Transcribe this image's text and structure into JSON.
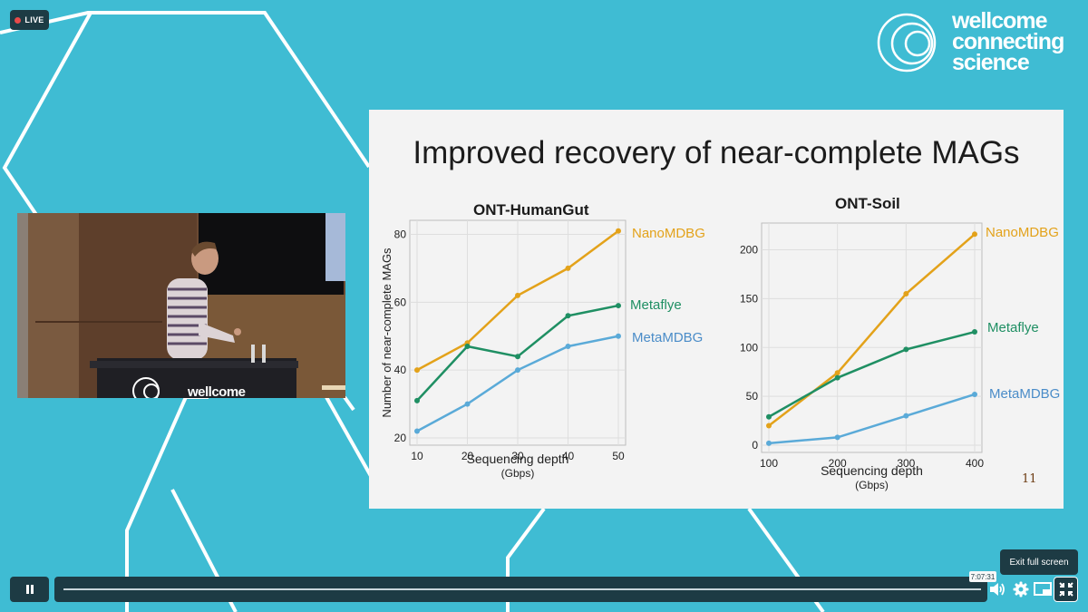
{
  "live_badge": {
    "label": "LIVE"
  },
  "logo": {
    "line1": "wellcome",
    "line2": "connecting",
    "line3": "science"
  },
  "speaker": {
    "podium_text": "wellcome"
  },
  "slide": {
    "title": "Improved recovery of near-complete MAGs",
    "page_number": "11"
  },
  "chart_data": [
    {
      "type": "line",
      "title": "ONT-HumanGut",
      "xlabel": "Sequencing depth",
      "xlabel2": "(Gbps)",
      "ylabel": "Number of near-complete MAGs",
      "x": [
        10,
        20,
        30,
        40,
        50
      ],
      "xlim": [
        10,
        50
      ],
      "ylim": [
        20,
        82
      ],
      "xticks": [
        "10",
        "20",
        "30",
        "40",
        "50"
      ],
      "yticks": [
        {
          "v": 20,
          "label": "20"
        },
        {
          "v": 40,
          "label": "40"
        },
        {
          "v": 60,
          "label": "60"
        },
        {
          "v": 80,
          "label": "80"
        }
      ],
      "grid": true,
      "series": [
        {
          "name": "NanoMDBG",
          "color": "#e3a21a",
          "values": [
            40,
            48,
            62,
            70,
            81
          ]
        },
        {
          "name": "Metaflye",
          "color": "#1f8f63",
          "values": [
            31,
            47,
            44,
            56,
            59
          ]
        },
        {
          "name": "MetaMDBG",
          "color": "#5aaad8",
          "values": [
            22,
            30,
            40,
            47,
            50
          ]
        }
      ]
    },
    {
      "type": "line",
      "title": "ONT-Soil",
      "xlabel": "Sequencing depth",
      "xlabel2": "(Gbps)",
      "ylabel": "",
      "x": [
        100,
        200,
        300,
        400
      ],
      "xlim": [
        100,
        400
      ],
      "ylim": [
        0,
        220
      ],
      "xticks": [
        "100",
        "200",
        "300",
        "400"
      ],
      "yticks": [
        {
          "v": 0,
          "label": "0"
        },
        {
          "v": 50,
          "label": "50"
        },
        {
          "v": 100,
          "label": "100"
        },
        {
          "v": 150,
          "label": "150"
        },
        {
          "v": 200,
          "label": "200"
        }
      ],
      "grid": true,
      "series": [
        {
          "name": "NanoMDBG",
          "color": "#e3a21a",
          "values": [
            20,
            74,
            155,
            216
          ]
        },
        {
          "name": "Metaflye",
          "color": "#1f8f63",
          "values": [
            29,
            69,
            98,
            116
          ]
        },
        {
          "name": "MetaMDBG",
          "color": "#5aaad8",
          "values": [
            2,
            8,
            30,
            52
          ]
        }
      ]
    }
  ],
  "player": {
    "exit_fullscreen_label": "Exit full screen",
    "timestamp": "7:07:31",
    "progress": 1.0,
    "icons": [
      "pause-icon",
      "volume-icon",
      "gear-icon",
      "picture-in-picture-icon",
      "exit-fullscreen-icon"
    ],
    "colors": {
      "bar": "#1d3b44",
      "background": "#3fbcd3"
    }
  }
}
